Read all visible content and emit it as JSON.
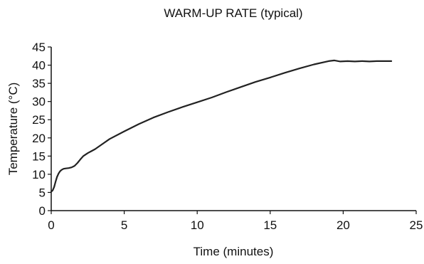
{
  "chart_data": {
    "type": "line",
    "title": "WARM-UP RATE (typical)",
    "xlabel": "Time (minutes)",
    "ylabel": "Temperature (°C)",
    "xlim": [
      0,
      25
    ],
    "ylim": [
      0,
      45
    ],
    "xticks": [
      0,
      5,
      10,
      15,
      20,
      25
    ],
    "yticks": [
      0,
      5,
      10,
      15,
      20,
      25,
      30,
      35,
      40,
      45
    ],
    "grid": false,
    "line_color": "#222222",
    "series": [
      {
        "x": [
          0,
          0.1,
          0.2,
          0.3,
          0.4,
          0.5,
          0.6,
          0.7,
          0.85,
          1.0,
          1.2,
          1.4,
          1.6,
          1.8,
          2.0,
          2.2,
          2.5,
          3.0,
          3.5,
          4.0,
          5.0,
          6.0,
          7.0,
          8.0,
          9.0,
          10.0,
          11.0,
          12.0,
          13.0,
          14.0,
          15.0,
          16.0,
          17.0,
          18.0,
          19.0,
          19.4,
          19.8,
          20.3,
          20.8,
          21.3,
          21.8,
          22.3,
          22.8,
          23.3
        ],
        "y": [
          5.2,
          5.6,
          6.5,
          8.0,
          9.3,
          10.2,
          10.8,
          11.2,
          11.5,
          11.6,
          11.7,
          11.9,
          12.3,
          13.1,
          14.1,
          15.0,
          15.8,
          16.9,
          18.3,
          19.7,
          21.8,
          23.8,
          25.6,
          27.1,
          28.5,
          29.8,
          31.1,
          32.6,
          34.0,
          35.4,
          36.6,
          37.9,
          39.1,
          40.2,
          41.1,
          41.3,
          41.0,
          41.1,
          41.0,
          41.1,
          41.0,
          41.1,
          41.1,
          41.1
        ]
      }
    ]
  }
}
